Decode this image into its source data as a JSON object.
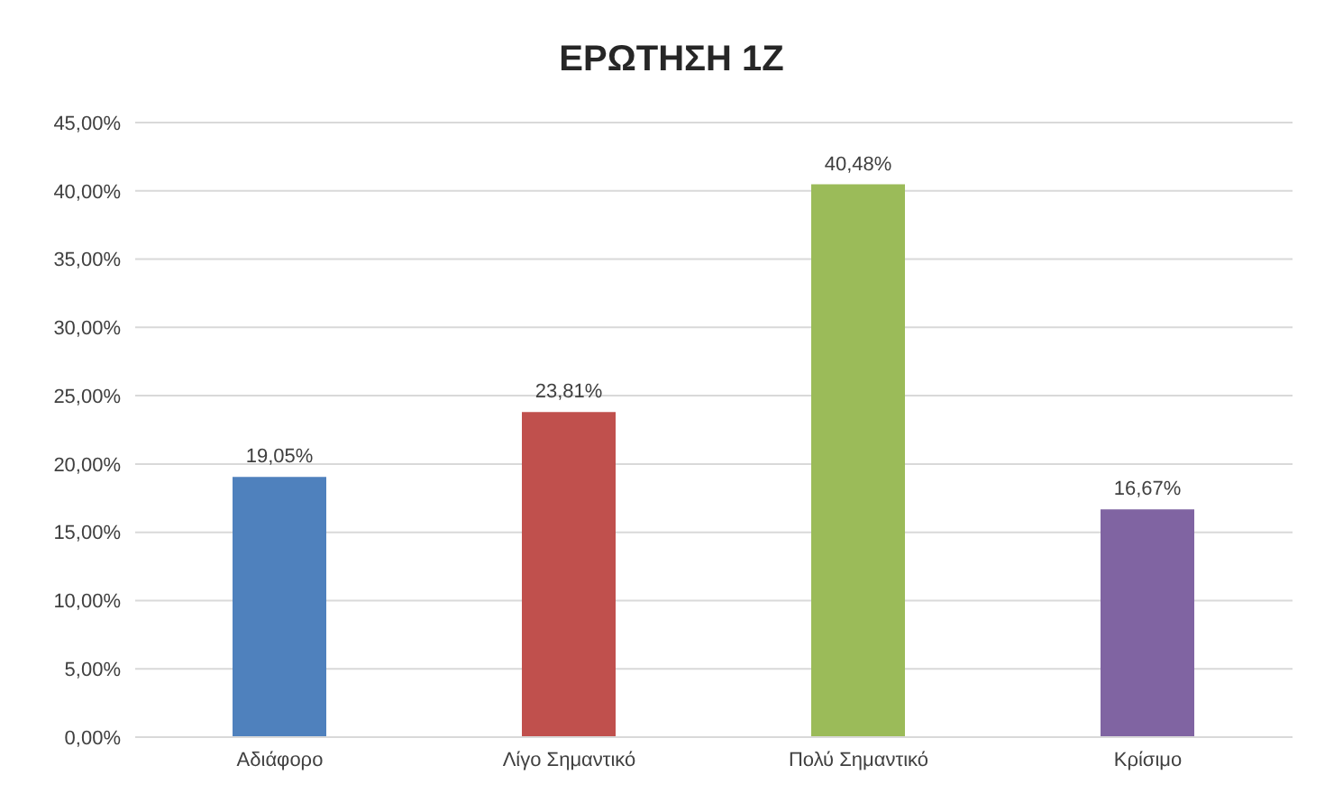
{
  "chart_data": {
    "type": "bar",
    "title": "ΕΡΩΤΗΣΗ 1Ζ",
    "categories": [
      "Αδιάφορο",
      "Λίγο Σημαντικό",
      "Πολύ Σημαντικό",
      "Κρίσιμο"
    ],
    "values": [
      19.05,
      23.81,
      40.48,
      16.67
    ],
    "colors": [
      "#4f81bd",
      "#c0504d",
      "#9bbb59",
      "#8064a2"
    ],
    "value_labels": [
      "19,05%",
      "23,81%",
      "40,48%",
      "16,67%"
    ],
    "ylim": [
      0,
      45
    ],
    "yticks": [
      {
        "value": 0,
        "label": "0,00%"
      },
      {
        "value": 5,
        "label": "5,00%"
      },
      {
        "value": 10,
        "label": "10,00%"
      },
      {
        "value": 15,
        "label": "15,00%"
      },
      {
        "value": 20,
        "label": "20,00%"
      },
      {
        "value": 25,
        "label": "25,00%"
      },
      {
        "value": 30,
        "label": "30,00%"
      },
      {
        "value": 35,
        "label": "35,00%"
      },
      {
        "value": 40,
        "label": "40,00%"
      },
      {
        "value": 45,
        "label": "45,00%"
      }
    ],
    "grid": "y",
    "legend": false
  }
}
